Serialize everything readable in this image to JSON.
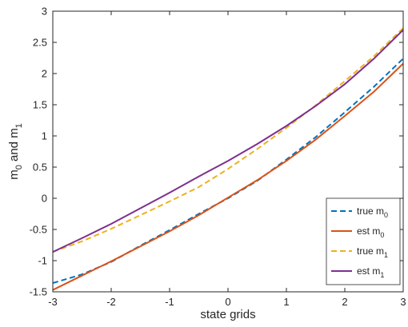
{
  "chart_data": {
    "type": "line",
    "xlabel": "state grids",
    "ylabel": {
      "base": "m",
      "sub0": "0",
      "mid": " and m",
      "sub1": "1"
    },
    "xlim": [
      -3,
      3
    ],
    "ylim": [
      -1.5,
      3
    ],
    "xticks": [
      -3,
      -2,
      -1,
      0,
      1,
      2,
      3
    ],
    "yticks": [
      -1.5,
      -1,
      -0.5,
      0,
      0.5,
      1,
      1.5,
      2,
      2.5,
      3
    ],
    "grid": false,
    "legend_position": "bottom-right",
    "series": [
      {
        "name": "true m0",
        "label_base": "true m",
        "label_sub": "0",
        "color": "#0072BD",
        "dash": "dashed",
        "x": [
          -3,
          -2.5,
          -2,
          -1.5,
          -1,
          -0.5,
          0,
          0.5,
          1,
          1.5,
          2,
          2.5,
          3
        ],
        "y": [
          -1.36,
          -1.22,
          -1.02,
          -0.76,
          -0.51,
          -0.25,
          0.0,
          0.28,
          0.62,
          0.98,
          1.38,
          1.79,
          2.24
        ]
      },
      {
        "name": "est m0",
        "label_base": "est m",
        "label_sub": "0",
        "color": "#D95319",
        "dash": "solid",
        "x": [
          -3,
          -2.5,
          -2,
          -1.5,
          -1,
          -0.5,
          0,
          0.5,
          1,
          1.5,
          2,
          2.5,
          3
        ],
        "y": [
          -1.47,
          -1.24,
          -1.01,
          -0.77,
          -0.53,
          -0.27,
          0.01,
          0.29,
          0.6,
          0.94,
          1.32,
          1.71,
          2.16
        ]
      },
      {
        "name": "true m1",
        "label_base": "true m",
        "label_sub": "1",
        "color": "#EDB120",
        "dash": "dashed",
        "x": [
          -3,
          -2.5,
          -2,
          -1.5,
          -1,
          -0.5,
          0,
          0.5,
          1,
          1.5,
          2,
          2.5,
          3
        ],
        "y": [
          -0.86,
          -0.69,
          -0.49,
          -0.27,
          -0.05,
          0.18,
          0.47,
          0.79,
          1.13,
          1.49,
          1.88,
          2.28,
          2.73
        ]
      },
      {
        "name": "est m1",
        "label_base": "est m",
        "label_sub": "1",
        "color": "#7E2F8E",
        "dash": "solid",
        "x": [
          -3,
          -2.5,
          -2,
          -1.5,
          -1,
          -0.5,
          0,
          0.5,
          1,
          1.5,
          2,
          2.5,
          3
        ],
        "y": [
          -0.86,
          -0.64,
          -0.41,
          -0.16,
          0.09,
          0.35,
          0.6,
          0.87,
          1.16,
          1.48,
          1.83,
          2.24,
          2.7
        ]
      }
    ]
  }
}
